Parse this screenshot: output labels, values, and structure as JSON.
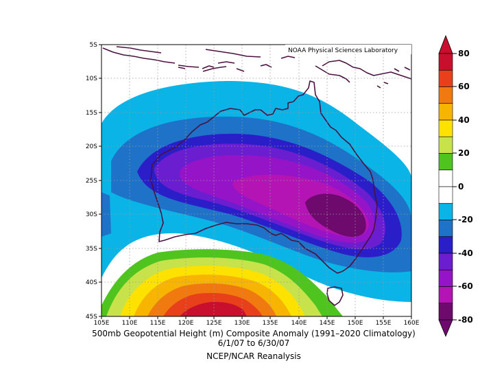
{
  "map": {
    "credit": "NOAA Physical Sciences Laboratory",
    "lon_labels": [
      "105E",
      "110E",
      "115E",
      "120E",
      "125E",
      "130E",
      "135E",
      "140E",
      "145E",
      "150E",
      "155E",
      "160E"
    ],
    "lat_labels": [
      "5S",
      "10S",
      "15S",
      "20S",
      "25S",
      "30S",
      "35S",
      "40S",
      "45S"
    ],
    "lon_range": [
      105,
      160
    ],
    "lat_range": [
      -5,
      -45
    ]
  },
  "caption": {
    "line1": "500mb Geopotential Height (m) Composite Anomaly (1991–2020 Climatology)",
    "line2": "6/1/07  to 6/30/07",
    "line3": "NCEP/NCAR Reanalysis"
  },
  "colorbar": {
    "ticks": [
      "80",
      "60",
      "40",
      "20",
      "0",
      "-20",
      "-40",
      "-60",
      "-80"
    ],
    "colors": [
      "#c8102e",
      "#e8401a",
      "#f07a10",
      "#f7b400",
      "#fde200",
      "#c7e24a",
      "#4fc41e",
      "#ffffff",
      "#ffffff",
      "#0ab4e6",
      "#1e73c8",
      "#2a1ec8",
      "#6a1ed0",
      "#9614c8",
      "#b414b4",
      "#6e0a6e"
    ]
  }
}
